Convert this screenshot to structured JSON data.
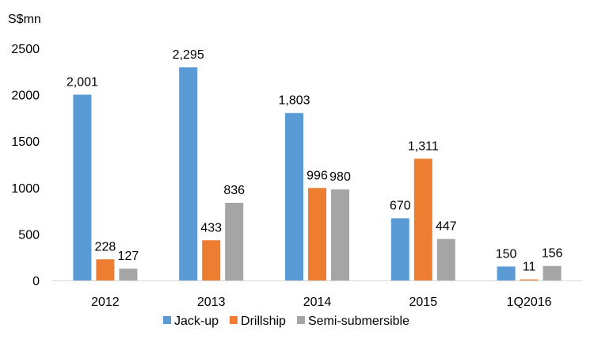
{
  "chart_data": {
    "type": "bar",
    "unit_label": "S$mn",
    "categories": [
      "2012",
      "2013",
      "2014",
      "2015",
      "1Q2016"
    ],
    "series": [
      {
        "name": "Jack-up",
        "color": "#5B9BD5",
        "values": [
          2001,
          2295,
          1803,
          670,
          150
        ],
        "labels": [
          "2,001",
          "2,295",
          "1,803",
          "670",
          "150"
        ]
      },
      {
        "name": "Drillship",
        "color": "#ED7D31",
        "values": [
          228,
          433,
          996,
          1311,
          11
        ],
        "labels": [
          "228",
          "433",
          "996",
          "1,311",
          "11"
        ]
      },
      {
        "name": "Semi-submersible",
        "color": "#A5A5A5",
        "values": [
          127,
          836,
          980,
          447,
          156
        ],
        "labels": [
          "127",
          "836",
          "980",
          "447",
          "156"
        ]
      }
    ],
    "ylim": [
      0,
      2500
    ],
    "yticks": [
      0,
      500,
      1000,
      1500,
      2000,
      2500
    ],
    "grid": false,
    "legend_position": "bottom"
  }
}
